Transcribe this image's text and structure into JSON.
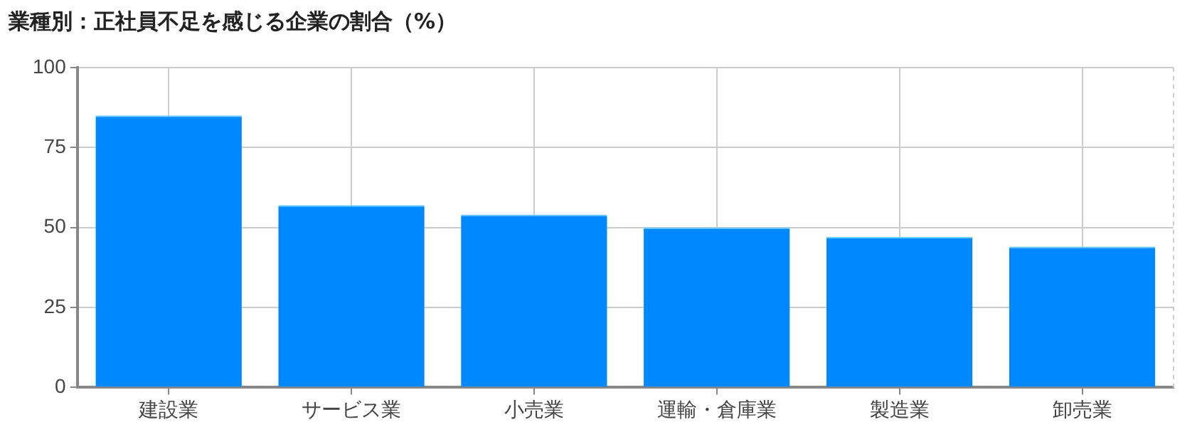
{
  "chart_data": {
    "type": "bar",
    "title": "業種別：正社員不足を感じる企業の割合（%）",
    "categories": [
      "建設業",
      "サービス業",
      "小売業",
      "運輸・倉庫業",
      "製造業",
      "卸売業"
    ],
    "values": [
      85,
      57,
      54,
      50,
      47,
      44
    ],
    "color": "#0088ff",
    "ylim": [
      0,
      100
    ],
    "yticks": [
      0,
      25,
      50,
      75,
      100
    ],
    "grid": true
  }
}
